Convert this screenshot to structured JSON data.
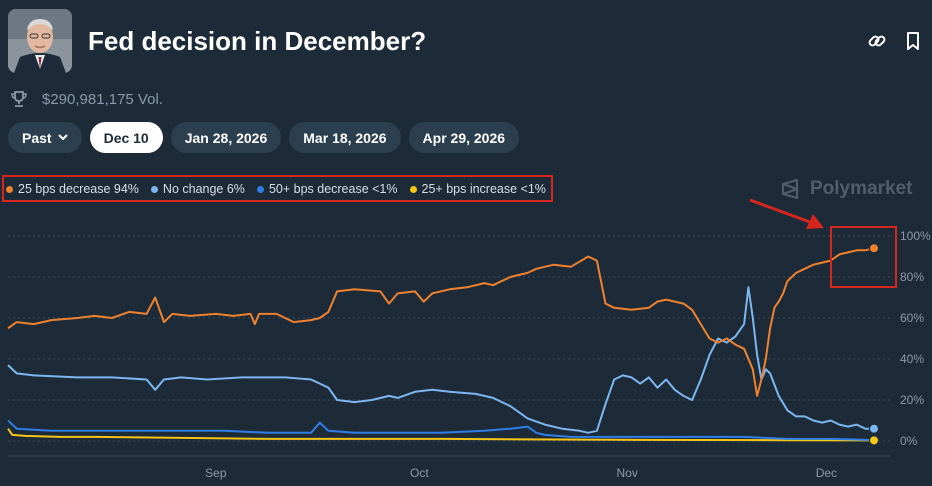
{
  "header": {
    "title": "Fed decision in December?",
    "volume": "$290,981,175 Vol."
  },
  "icons": {
    "link": "link-icon",
    "bookmark": "bookmark-icon",
    "trophy": "trophy-icon",
    "chevron": "chevron-down-icon",
    "brand": "polymarket-logo-icon"
  },
  "tabs": [
    {
      "label": "Past",
      "active": false
    },
    {
      "label": "Dec 10",
      "active": true
    },
    {
      "label": "Jan 28, 2026",
      "active": false
    },
    {
      "label": "Mar 18, 2026",
      "active": false
    },
    {
      "label": "Apr 29, 2026",
      "active": false
    }
  ],
  "brand": {
    "name": "Polymarket"
  },
  "colors": {
    "background": "#1d2b39",
    "annotation": "#d7261e",
    "grid": "#3a4a5a",
    "axis_text": "#8a99ab"
  },
  "chart_data": {
    "type": "line",
    "title": "Fed decision in December?",
    "xlabel": "",
    "ylabel": "",
    "x_range": [
      0,
      100
    ],
    "x_ticks": [
      {
        "x": 24,
        "label": "Sep"
      },
      {
        "x": 47.5,
        "label": "Oct"
      },
      {
        "x": 71.5,
        "label": "Nov"
      },
      {
        "x": 94.5,
        "label": "Dec"
      }
    ],
    "ylim": [
      0,
      100
    ],
    "y_ticks": [
      0,
      20,
      40,
      60,
      80,
      100
    ],
    "y_tick_labels": [
      "0%",
      "20%",
      "40%",
      "60%",
      "80%",
      "100%"
    ],
    "grid": true,
    "legend_position": "top-left",
    "series": [
      {
        "name": "25 bps decrease",
        "legend": "25 bps decrease 94%",
        "color": "#f0822f",
        "end_marker": true,
        "points": [
          [
            0,
            55
          ],
          [
            1,
            58
          ],
          [
            3,
            57
          ],
          [
            5,
            59
          ],
          [
            8,
            60
          ],
          [
            10,
            61
          ],
          [
            12,
            60
          ],
          [
            14,
            63
          ],
          [
            16,
            62
          ],
          [
            17,
            70
          ],
          [
            18,
            58
          ],
          [
            19,
            62
          ],
          [
            21,
            61
          ],
          [
            24,
            62
          ],
          [
            26,
            61
          ],
          [
            28,
            62
          ],
          [
            28.5,
            57
          ],
          [
            29,
            62
          ],
          [
            31,
            62
          ],
          [
            33,
            58
          ],
          [
            35,
            59
          ],
          [
            36,
            60
          ],
          [
            37,
            63
          ],
          [
            38,
            73
          ],
          [
            40,
            74
          ],
          [
            43,
            73
          ],
          [
            44,
            67
          ],
          [
            45,
            72
          ],
          [
            47,
            73
          ],
          [
            48,
            68
          ],
          [
            49,
            72
          ],
          [
            51,
            74
          ],
          [
            53,
            75
          ],
          [
            55,
            77
          ],
          [
            56,
            76
          ],
          [
            58,
            80
          ],
          [
            60,
            82
          ],
          [
            61,
            84
          ],
          [
            63,
            86
          ],
          [
            65,
            85
          ],
          [
            67,
            90
          ],
          [
            68,
            88
          ],
          [
            69,
            67
          ],
          [
            70,
            65
          ],
          [
            72,
            64
          ],
          [
            74,
            65
          ],
          [
            75,
            68
          ],
          [
            76,
            69
          ],
          [
            78,
            67
          ],
          [
            79,
            64
          ],
          [
            80,
            57
          ],
          [
            81,
            50
          ],
          [
            82,
            48
          ],
          [
            83,
            50
          ],
          [
            84,
            47
          ],
          [
            85,
            45
          ],
          [
            86,
            35
          ],
          [
            86.5,
            22
          ],
          [
            87,
            30
          ],
          [
            87.5,
            40
          ],
          [
            88,
            55
          ],
          [
            88.5,
            65
          ],
          [
            89,
            68
          ],
          [
            89.5,
            72
          ],
          [
            90,
            78
          ],
          [
            91,
            82
          ],
          [
            92,
            84
          ],
          [
            93,
            86
          ],
          [
            94,
            87
          ],
          [
            95,
            88
          ],
          [
            96,
            91
          ],
          [
            97,
            92
          ],
          [
            98,
            93
          ],
          [
            99,
            93
          ],
          [
            100,
            94
          ]
        ]
      },
      {
        "name": "No change",
        "legend": "No change 6%",
        "color": "#7db6f0",
        "end_marker": true,
        "points": [
          [
            0,
            37
          ],
          [
            1,
            33
          ],
          [
            3,
            32
          ],
          [
            8,
            31
          ],
          [
            12,
            31
          ],
          [
            16,
            30
          ],
          [
            17,
            25
          ],
          [
            18,
            30
          ],
          [
            20,
            31
          ],
          [
            23,
            30
          ],
          [
            27,
            31
          ],
          [
            32,
            31
          ],
          [
            35,
            30
          ],
          [
            36,
            28
          ],
          [
            37,
            26
          ],
          [
            38,
            20
          ],
          [
            40,
            19
          ],
          [
            42,
            20
          ],
          [
            44,
            22
          ],
          [
            45,
            21
          ],
          [
            47,
            24
          ],
          [
            49,
            25
          ],
          [
            51,
            24
          ],
          [
            54,
            23
          ],
          [
            56,
            21
          ],
          [
            58,
            17
          ],
          [
            60,
            11
          ],
          [
            62,
            8
          ],
          [
            64,
            6
          ],
          [
            66,
            5
          ],
          [
            67,
            4
          ],
          [
            68,
            5
          ],
          [
            69,
            18
          ],
          [
            70,
            30
          ],
          [
            71,
            32
          ],
          [
            72,
            31
          ],
          [
            73,
            28
          ],
          [
            74,
            31
          ],
          [
            75,
            26
          ],
          [
            76,
            30
          ],
          [
            77,
            25
          ],
          [
            78,
            22
          ],
          [
            79,
            20
          ],
          [
            80,
            30
          ],
          [
            81,
            42
          ],
          [
            82,
            50
          ],
          [
            83,
            48
          ],
          [
            84,
            51
          ],
          [
            85,
            57
          ],
          [
            85.5,
            75
          ],
          [
            86,
            60
          ],
          [
            86.5,
            42
          ],
          [
            87,
            30
          ],
          [
            87.5,
            35
          ],
          [
            88,
            33
          ],
          [
            89,
            22
          ],
          [
            90,
            15
          ],
          [
            91,
            12
          ],
          [
            92,
            12
          ],
          [
            93,
            10
          ],
          [
            94,
            9
          ],
          [
            95,
            10
          ],
          [
            96,
            8
          ],
          [
            97,
            7
          ],
          [
            98,
            8
          ],
          [
            99,
            6
          ],
          [
            100,
            6
          ]
        ]
      },
      {
        "name": "50+ bps decrease",
        "legend": "50+ bps decrease <1%",
        "color": "#2f7ee6",
        "end_marker": false,
        "points": [
          [
            0,
            10
          ],
          [
            1,
            6
          ],
          [
            5,
            5
          ],
          [
            10,
            5
          ],
          [
            15,
            5
          ],
          [
            20,
            5
          ],
          [
            25,
            5
          ],
          [
            30,
            4
          ],
          [
            35,
            4
          ],
          [
            36,
            9
          ],
          [
            37,
            5
          ],
          [
            40,
            4
          ],
          [
            45,
            4
          ],
          [
            50,
            4
          ],
          [
            55,
            5
          ],
          [
            58,
            6
          ],
          [
            60,
            7
          ],
          [
            61,
            4
          ],
          [
            62,
            3
          ],
          [
            65,
            2
          ],
          [
            70,
            2
          ],
          [
            75,
            2
          ],
          [
            80,
            2
          ],
          [
            85,
            2
          ],
          [
            90,
            1
          ],
          [
            95,
            1
          ],
          [
            100,
            0.5
          ]
        ]
      },
      {
        "name": "25+ bps increase",
        "legend": "25+ bps increase <1%",
        "color": "#f5c518",
        "end_marker": true,
        "points": [
          [
            0,
            6
          ],
          [
            0.5,
            3
          ],
          [
            2,
            2.5
          ],
          [
            6,
            2
          ],
          [
            10,
            2
          ],
          [
            20,
            1.5
          ],
          [
            30,
            1
          ],
          [
            40,
            1
          ],
          [
            50,
            1
          ],
          [
            60,
            0.8
          ],
          [
            70,
            0.6
          ],
          [
            80,
            0.5
          ],
          [
            90,
            0.4
          ],
          [
            100,
            0.3
          ]
        ]
      }
    ]
  }
}
